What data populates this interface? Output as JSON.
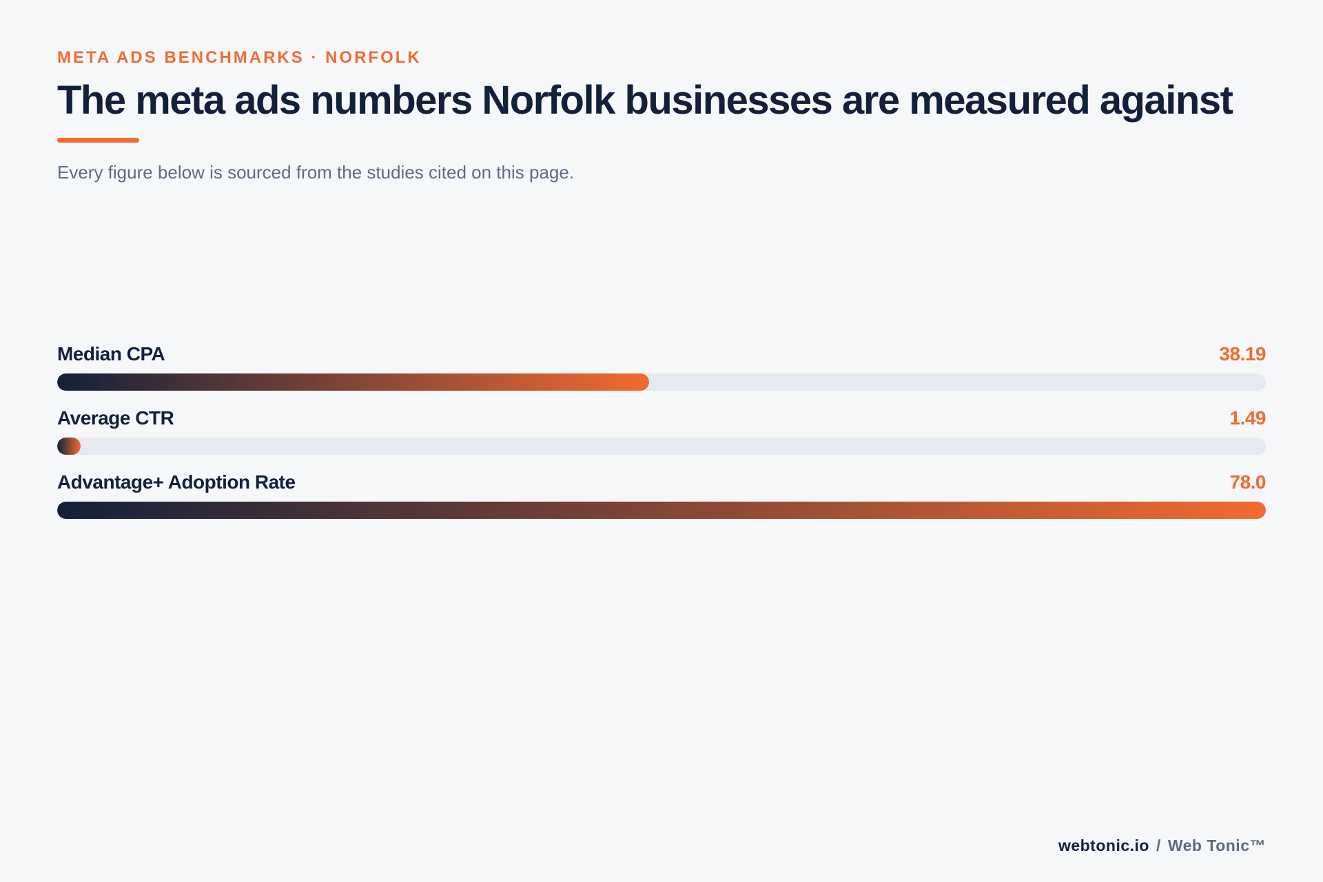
{
  "header": {
    "eyebrow": "META ADS BENCHMARKS · NORFOLK",
    "title": "The meta ads numbers Norfolk businesses are measured against",
    "subtitle": "Every figure below is sourced from the studies cited on this page."
  },
  "colors": {
    "accent": "#f26b30",
    "navy": "#13203a",
    "muted": "#5f6b7f",
    "track": "#e7e9f0",
    "background": "#f6f7f9"
  },
  "chart_data": {
    "type": "bar",
    "orientation": "horizontal",
    "categories": [
      "Median CPA",
      "Average CTR",
      "Advantage+ Adoption Rate"
    ],
    "values": [
      38.19,
      1.49,
      78.0
    ],
    "value_labels": [
      "38.19",
      "1.49",
      "78.0"
    ],
    "xlim": [
      0,
      78.0
    ],
    "grid": false
  },
  "footer": {
    "site": "webtonic.io",
    "separator": "/",
    "brand": "Web Tonic™"
  }
}
